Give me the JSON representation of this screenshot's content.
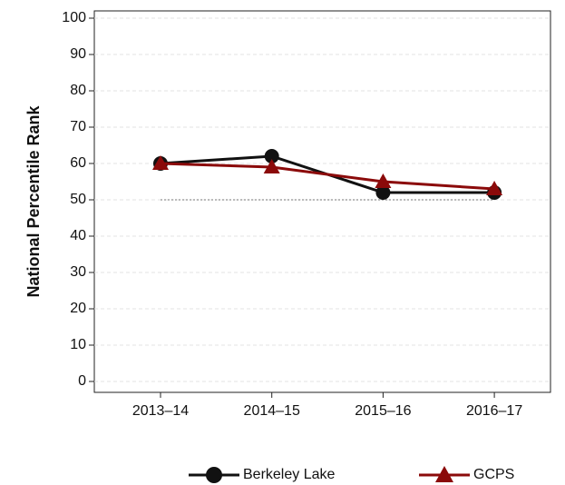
{
  "chart_data": {
    "type": "line",
    "y_label": "National Percentile Rank",
    "categories": [
      "2013–14",
      "2014–15",
      "2015–16",
      "2016–17"
    ],
    "series": [
      {
        "name": "Berkeley Lake",
        "color": "#111111",
        "marker": "circle",
        "values": [
          60,
          62,
          52,
          52
        ]
      },
      {
        "name": "GCPS",
        "color": "#8b0a0a",
        "marker": "triangle",
        "values": [
          60,
          59,
          55,
          53
        ]
      }
    ],
    "reference_line": 50,
    "ylim": [
      -3,
      102
    ],
    "yticks": [
      0,
      10,
      20,
      30,
      40,
      50,
      60,
      70,
      80,
      90,
      100
    ],
    "grid": true,
    "legend": "bottom"
  }
}
